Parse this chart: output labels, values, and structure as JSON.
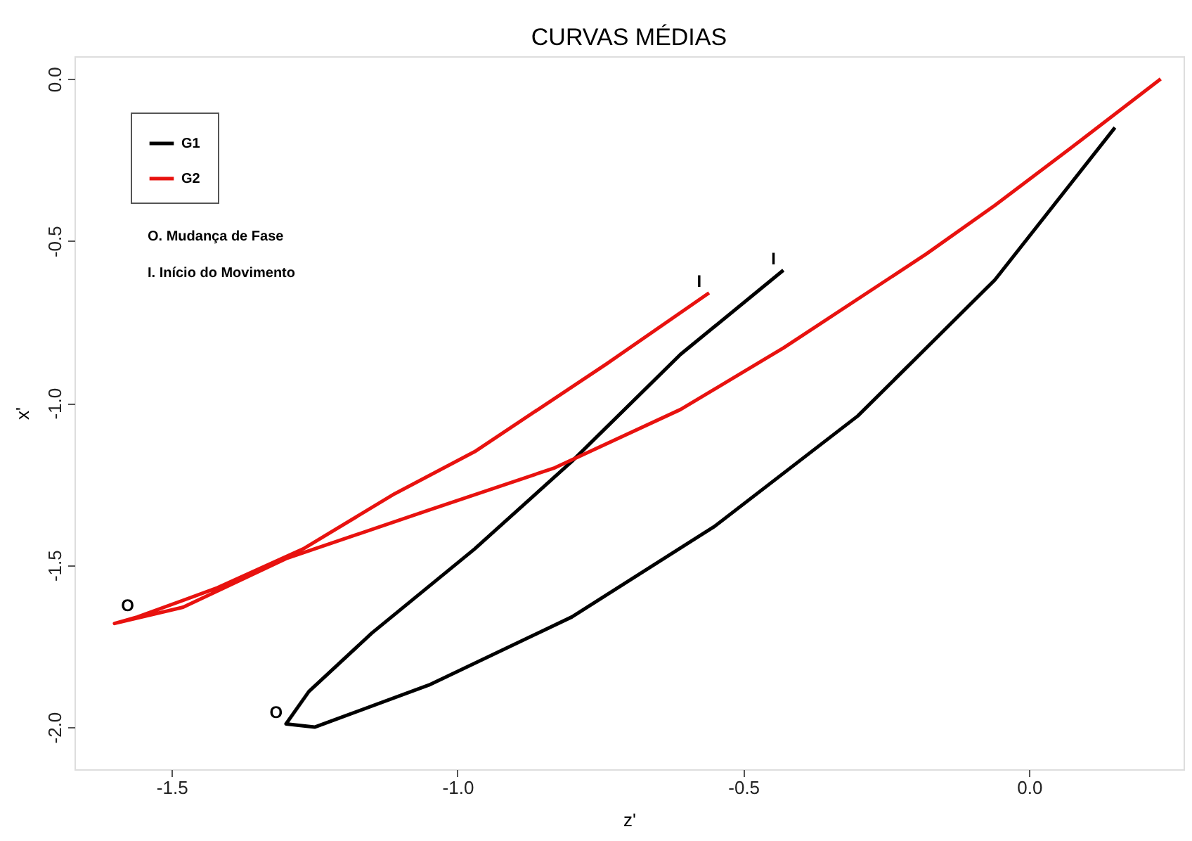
{
  "chart_data": {
    "type": "line",
    "title": "CURVAS MÉDIAS",
    "xlabel": "z'",
    "ylabel": "x'",
    "xlim": [
      -1.67,
      0.27
    ],
    "ylim": [
      -2.13,
      0.07
    ],
    "xticks": [
      -1.5,
      {
        "value": -1.0,
        "label": "-1.0"
      },
      -0.5,
      {
        "value": 0,
        "label": "0.0"
      }
    ],
    "yticks": [
      {
        "value": -2.0,
        "label": "-2.0"
      },
      -1.5,
      {
        "value": -1.0,
        "label": "-1.0"
      },
      -0.5,
      {
        "value": 0,
        "label": "0.0"
      }
    ],
    "grid": false,
    "legend": "top left",
    "marker": "none",
    "line_style": "solid",
    "series": [
      {
        "name": "G1",
        "color": "#000000",
        "x": [
          -0.43,
          -0.61,
          -0.8,
          -0.97,
          -1.15,
          -1.26,
          -1.3,
          -1.25,
          -1.05,
          -0.8,
          -0.55,
          -0.3,
          -0.06,
          0.15
        ],
        "values": [
          -0.59,
          -0.85,
          -1.18,
          -1.45,
          -1.71,
          -1.89,
          -1.99,
          -2.0,
          -1.87,
          -1.66,
          -1.38,
          -1.04,
          -0.62,
          -0.15
        ]
      },
      {
        "name": "G2",
        "color": "#e8120f",
        "x": [
          -0.56,
          -0.74,
          -0.97,
          -1.11,
          -1.27,
          -1.42,
          -1.56,
          -1.6,
          -1.48,
          -1.3,
          -1.05,
          -0.83,
          -0.61,
          -0.43,
          -0.18,
          -0.06,
          0.09,
          0.23
        ],
        "values": [
          -0.66,
          -0.88,
          -1.15,
          -1.28,
          -1.45,
          -1.57,
          -1.66,
          -1.68,
          -1.63,
          -1.48,
          -1.33,
          -1.2,
          -1.02,
          -0.83,
          -0.54,
          -0.39,
          -0.19,
          0.0
        ]
      }
    ],
    "annotations": [
      "O. Mudança de Fase",
      "I. Início do Movimento",
      {
        "text": "O",
        "x": -1.3,
        "y": -1.99
      },
      {
        "text": "I",
        "x": -0.43,
        "y": -0.59
      },
      {
        "text": "O",
        "x": -1.56,
        "y": -1.66
      },
      {
        "text": "I",
        "x": -0.56,
        "y": -0.66
      }
    ]
  }
}
